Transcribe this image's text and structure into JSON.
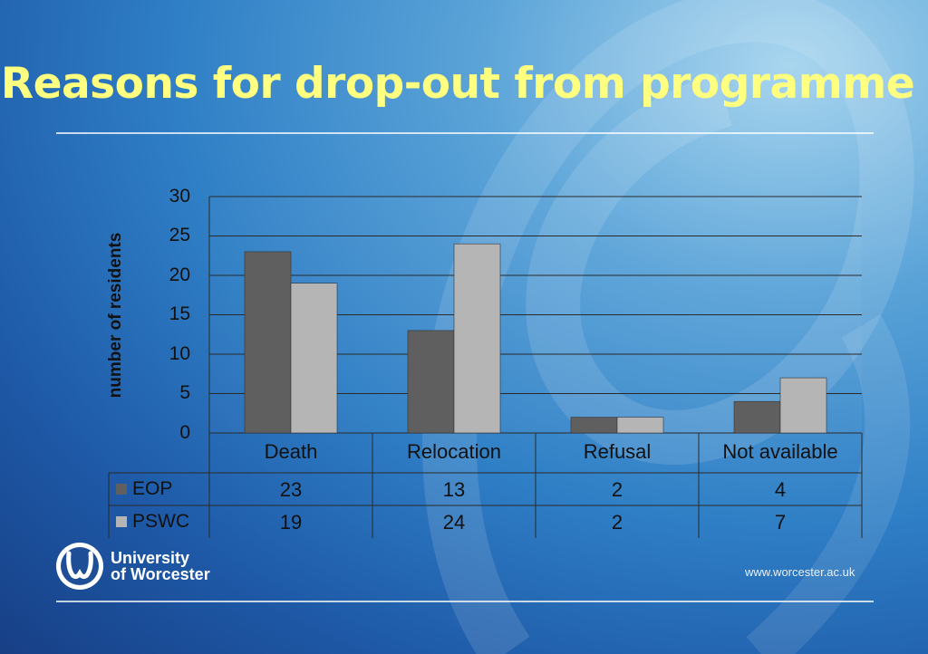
{
  "title": "Reasons for drop-out from programme",
  "chart_data": {
    "type": "bar",
    "title": "",
    "xlabel": "",
    "ylabel": "number of residents",
    "ylim": [
      0,
      30
    ],
    "yticks": [
      "30",
      "25",
      "20",
      "15",
      "10",
      "5",
      "0"
    ],
    "categories": [
      "Death",
      "Relocation",
      "Refusal",
      "Not available"
    ],
    "series": [
      {
        "name": "EOP",
        "values": [
          23,
          13,
          2,
          4
        ],
        "labels": [
          "23",
          "13",
          "2",
          "4"
        ],
        "color": "#5f5f5f"
      },
      {
        "name": "PSWC",
        "values": [
          19,
          24,
          2,
          7
        ],
        "labels": [
          "19",
          "24",
          "2",
          "7"
        ],
        "color": "#b5b5b5"
      }
    ],
    "grid": true,
    "data_table": true
  },
  "footer": {
    "logo_line1": "University",
    "logo_line2": "of Worcester",
    "url": "www.worcester.ac.uk"
  }
}
